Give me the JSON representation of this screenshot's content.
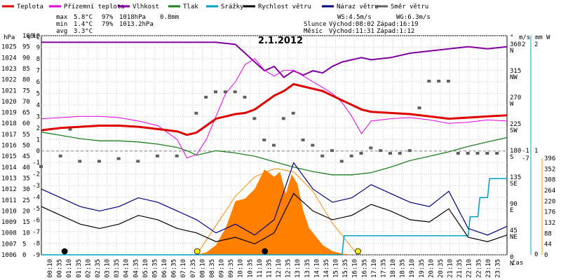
{
  "chart_data": {
    "type": "line",
    "title": "2.1.2012",
    "legend": [
      {
        "key": "temp",
        "name": "Teplota",
        "color": "#e00000"
      },
      {
        "key": "feels",
        "name": "Přízemní teplota",
        "color": "#e000e0"
      },
      {
        "key": "hum",
        "name": "Vlhkost",
        "color": "#8000a0"
      },
      {
        "key": "press",
        "name": "Tlak",
        "color": "#208020"
      },
      {
        "key": "rain",
        "name": "Srážky",
        "color": "#00a0c0"
      },
      {
        "key": "wind",
        "name": "Rychlost větru",
        "color": "#000000"
      },
      {
        "key": "gust",
        "name": "Náraz větru",
        "color": "#000080"
      },
      {
        "key": "dir",
        "name": "Směr větru",
        "color": "#606060"
      }
    ],
    "stats": {
      "max": {
        "label": "max",
        "temp": "5.8°C",
        "hum": "97%",
        "press": "1018hPa",
        "rain": "0.8mm"
      },
      "min": {
        "label": "min",
        "temp": "1.4°C",
        "hum": "79%",
        "press": "1013.2hPa"
      },
      "avg": {
        "label": "avg",
        "temp": "3.3°C"
      }
    },
    "info": {
      "ws": "WS:4.5m/s",
      "wg": "WG:6.3m/s",
      "sun_label": "Slunce",
      "sun_rise": "Východ:08:02",
      "sun_set": "Západ:16:19",
      "moon_label": "Měsíc",
      "moon_rise": "Východ:11:31",
      "moon_set": "Západ:1:12"
    },
    "axes": {
      "hpa": {
        "unit": "hPa",
        "range": [
          1006,
          1026
        ],
        "ticks": [
          1006,
          1007,
          1008,
          1009,
          1010,
          1011,
          1012,
          1013,
          1014,
          1015,
          1016,
          1017,
          1018,
          1019,
          1020,
          1021,
          1022,
          1023,
          1024,
          1025
        ]
      },
      "pct": {
        "unit": "%",
        "range": [
          0,
          100
        ],
        "ticks": [
          0,
          5,
          10,
          15,
          20,
          25,
          30,
          35,
          40,
          45,
          50,
          55,
          60,
          65,
          70,
          75,
          80,
          85,
          90,
          95,
          100
        ]
      },
      "degc": {
        "unit": "°C",
        "range": [
          -9,
          10
        ],
        "ticks": [
          -9,
          -8,
          -7,
          -6,
          -5,
          -4,
          -3,
          -2,
          -1,
          0,
          1,
          2,
          3,
          4,
          5,
          6,
          7,
          8,
          9,
          10
        ]
      },
      "deg": {
        "unit": "°",
        "ticks": [
          {
            "v": "0",
            "d": "N"
          },
          {
            "v": "45",
            "d": "NE"
          },
          {
            "v": "90",
            "d": "E"
          },
          {
            "v": "135",
            "d": "SE"
          },
          {
            "v": "180",
            "d": "S"
          },
          {
            "v": "225",
            "d": "SW"
          },
          {
            "v": "270",
            "d": "W"
          },
          {
            "v": "315",
            "d": "NW"
          },
          {
            "v": "360",
            "d": "N"
          }
        ]
      },
      "ms": {
        "unit": "m/s",
        "ticks": [
          "-7",
          "-1",
          "2"
        ]
      },
      "mm": {
        "unit": "mm",
        "ticks": [
          "0",
          "1",
          "2"
        ]
      },
      "w": {
        "unit": "W",
        "range": [
          0,
          396
        ],
        "ticks": [
          0,
          44,
          88,
          132,
          176,
          220,
          264,
          308,
          352,
          396
        ]
      },
      "x_label": "čas",
      "time_ticks": [
        "00:10",
        "00:35",
        "01:10",
        "01:35",
        "02:10",
        "02:35",
        "03:10",
        "03:35",
        "04:10",
        "04:35",
        "05:10",
        "05:35",
        "06:10",
        "06:35",
        "07:10",
        "07:35",
        "08:10",
        "08:35",
        "09:10",
        "09:35",
        "10:10",
        "10:35",
        "11:10",
        "11:35",
        "12:10",
        "12:35",
        "13:10",
        "13:35",
        "14:10",
        "14:35",
        "15:10",
        "15:35",
        "16:10",
        "16:35",
        "17:10",
        "17:35",
        "18:10",
        "18:35",
        "19:10",
        "19:35",
        "20:10",
        "20:35",
        "21:10",
        "21:35",
        "22:10",
        "22:35",
        "23:10",
        "23:35"
      ]
    },
    "series": {
      "temp": {
        "unit": "°C",
        "x": [
          0,
          1,
          2,
          3,
          4,
          5,
          6,
          7,
          7.5,
          8,
          8.5,
          9,
          9.5,
          10,
          10.5,
          11,
          11.5,
          12,
          12.5,
          13,
          13.5,
          14,
          14.5,
          15,
          15.5,
          16,
          16.5,
          17,
          18,
          19,
          20,
          21,
          22,
          23,
          24
        ],
        "y": [
          1.8,
          2.0,
          2.1,
          2.2,
          2.2,
          2.1,
          1.9,
          1.7,
          1.4,
          1.6,
          2.2,
          2.8,
          3.0,
          3.2,
          3.3,
          3.6,
          4.2,
          4.8,
          5.2,
          5.8,
          5.6,
          5.4,
          5.2,
          4.8,
          4.4,
          4.0,
          3.6,
          3.4,
          3.3,
          3.2,
          3.0,
          2.8,
          2.9,
          3.0,
          3.1
        ]
      },
      "feels": {
        "unit": "°C",
        "x": [
          0,
          1,
          2,
          3,
          4,
          5,
          6,
          7,
          7.5,
          8,
          8.5,
          9,
          9.5,
          10,
          10.5,
          11,
          11.5,
          12,
          12.5,
          13,
          13.5,
          14,
          14.5,
          15,
          15.5,
          16,
          16.5,
          17,
          18,
          19,
          20,
          21,
          22,
          23,
          24
        ],
        "y": [
          2.8,
          2.9,
          3.0,
          3.0,
          2.9,
          2.6,
          2.2,
          1.0,
          -0.6,
          -0.3,
          1.0,
          3.0,
          5.0,
          6.0,
          7.5,
          8.0,
          7.0,
          6.5,
          7.0,
          7.0,
          6.5,
          6.0,
          5.5,
          5.0,
          4.2,
          3.0,
          1.5,
          2.6,
          2.8,
          2.9,
          2.7,
          2.4,
          2.5,
          2.7,
          2.6
        ]
      },
      "hum": {
        "unit": "%",
        "x": [
          0,
          2,
          4,
          6,
          8,
          9,
          10,
          10.5,
          11,
          11.5,
          12,
          12.5,
          13,
          13.5,
          14,
          14.5,
          15,
          15.5,
          16,
          16.5,
          17,
          18,
          19,
          20,
          21,
          22,
          23,
          24
        ],
        "y": [
          97,
          97,
          97,
          97,
          97,
          97,
          96,
          92,
          88,
          84,
          86,
          81,
          84,
          82,
          84,
          83,
          86,
          88,
          89,
          90,
          89,
          90,
          92,
          93,
          94,
          95,
          94,
          95
        ]
      },
      "press": {
        "unit": "hPa",
        "x": [
          0,
          1,
          2,
          3,
          4,
          5,
          6,
          7,
          7.5,
          8,
          8.5,
          9,
          10,
          11,
          12,
          13,
          14,
          15,
          16,
          17,
          18,
          19,
          20,
          21,
          22,
          23,
          24
        ],
        "y": [
          1017.2,
          1016.9,
          1016.6,
          1016.4,
          1016.4,
          1016.3,
          1016.1,
          1015.8,
          1015.5,
          1015.1,
          1015.3,
          1015.5,
          1015.3,
          1015.0,
          1014.5,
          1014.0,
          1013.6,
          1013.3,
          1013.3,
          1013.5,
          1014.0,
          1014.6,
          1015.0,
          1015.4,
          1015.9,
          1016.3,
          1016.7
        ]
      },
      "solar": {
        "unit": "W",
        "x": [
          8,
          8.5,
          9,
          9.5,
          10,
          10.5,
          11,
          11.5,
          12,
          12.3,
          12.6,
          12.9,
          13.2,
          13.5,
          13.8,
          14.1,
          14.5,
          15,
          15.5,
          16
        ],
        "y": [
          0,
          10,
          40,
          110,
          220,
          230,
          270,
          350,
          320,
          340,
          250,
          330,
          290,
          180,
          110,
          80,
          40,
          15,
          5,
          0
        ]
      },
      "solar_theory": {
        "unit": "W",
        "x": [
          8,
          9,
          10,
          11,
          12,
          12.2,
          13,
          14,
          15,
          16.3
        ],
        "y": [
          0,
          120,
          240,
          320,
          352,
          352,
          340,
          260,
          130,
          0
        ]
      },
      "rain": {
        "unit": "mm",
        "x": [
          0,
          15.5,
          15.6,
          22,
          22.1,
          22.5,
          22.6,
          23,
          23.1,
          24
        ],
        "y": [
          0,
          0,
          0.2,
          0.2,
          0.4,
          0.4,
          0.6,
          0.6,
          0.8,
          0.8
        ]
      },
      "wind": {
        "unit": "m/s",
        "x": [
          0,
          1,
          2,
          3,
          4,
          5,
          6,
          7,
          8,
          9,
          10,
          11,
          12,
          13,
          14,
          15,
          16,
          17,
          18,
          19,
          20,
          21,
          22,
          23,
          24
        ],
        "y": [
          2.2,
          1.8,
          1.4,
          1.2,
          1.4,
          1.8,
          1.6,
          1.2,
          1.0,
          0.6,
          0.8,
          0.5,
          1.0,
          2.8,
          2.0,
          1.6,
          1.8,
          2.3,
          2.0,
          1.6,
          1.5,
          2.1,
          0.8,
          0.6,
          0.9
        ]
      },
      "gust": {
        "unit": "m/s",
        "x": [
          0,
          1,
          2,
          3,
          4,
          5,
          6,
          7,
          8,
          9,
          10,
          11,
          12,
          13,
          14,
          15,
          16,
          17,
          18,
          19,
          20,
          21,
          22,
          23,
          24
        ],
        "y": [
          3.0,
          2.6,
          2.2,
          2.0,
          2.2,
          2.6,
          2.4,
          2.0,
          1.6,
          1.0,
          1.4,
          0.9,
          1.6,
          4.2,
          3.0,
          2.4,
          2.6,
          3.2,
          2.8,
          2.4,
          2.2,
          2.9,
          1.2,
          0.9,
          1.3
        ]
      },
      "dir": {
        "unit": "°",
        "x": [
          0,
          1,
          1.5,
          2,
          3,
          4,
          5,
          6,
          7,
          8,
          8.5,
          9,
          9.5,
          10,
          10.5,
          11,
          11.5,
          12,
          12.5,
          13,
          13.5,
          14,
          14.5,
          15,
          15.5,
          16,
          16.5,
          17,
          17.5,
          18,
          18.5,
          19,
          19.5,
          20,
          20.5,
          21,
          21.5,
          22,
          22.5,
          23,
          23.5
        ],
        "y": [
          150,
          170,
          220,
          160,
          160,
          165,
          160,
          170,
          170,
          250,
          280,
          290,
          290,
          290,
          280,
          240,
          200,
          190,
          240,
          250,
          200,
          190,
          170,
          180,
          160,
          170,
          175,
          185,
          180,
          175,
          175,
          180,
          260,
          310,
          310,
          310,
          175,
          175,
          175,
          175,
          175
        ]
      }
    },
    "events": {
      "sunrise_h": 8.03,
      "sunset_h": 16.32,
      "moonrise_h": 11.52,
      "moonset_h": 1.2
    }
  }
}
